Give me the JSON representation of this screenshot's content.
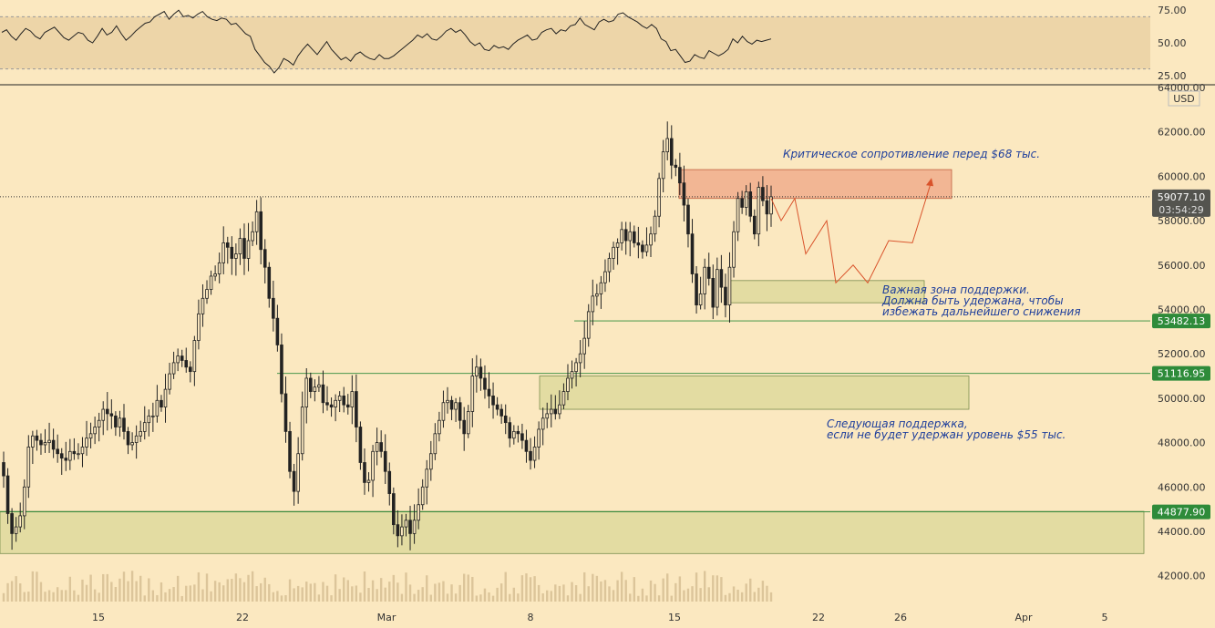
{
  "chart_data": [
    {
      "type": "line",
      "panel": "RSI",
      "ylim": [
        20,
        80
      ],
      "band": [
        30,
        70
      ],
      "midline": 50,
      "yticks": [
        "75.00",
        "50.00",
        "25.00"
      ],
      "values": [
        58,
        60,
        55,
        52,
        57,
        61,
        59,
        55,
        53,
        58,
        60,
        62,
        58,
        54,
        52,
        55,
        58,
        57,
        52,
        50,
        55,
        61,
        56,
        58,
        63,
        57,
        52,
        55,
        59,
        62,
        65,
        66,
        70,
        72,
        74,
        68,
        72,
        75,
        70,
        71,
        69,
        72,
        74,
        70,
        68,
        67,
        69,
        68,
        64,
        65,
        61,
        57,
        55,
        45,
        40,
        35,
        32,
        27,
        31,
        38,
        36,
        33,
        40,
        45,
        49,
        45,
        41,
        46,
        51,
        45,
        41,
        37,
        39,
        36,
        41,
        43,
        40,
        38,
        37,
        41,
        38,
        38,
        40,
        43,
        46,
        49,
        52,
        56,
        54,
        57,
        53,
        52,
        55,
        59,
        61,
        58,
        60,
        56,
        51,
        48,
        50,
        45,
        44,
        48,
        46,
        47,
        45,
        49,
        52,
        54,
        56,
        52,
        53,
        58,
        60,
        61,
        57,
        60,
        59,
        63,
        64,
        69,
        64,
        62,
        60,
        66,
        68,
        66,
        67,
        72,
        73,
        70,
        68,
        66,
        63,
        61,
        64,
        61,
        53,
        51,
        44,
        45,
        40,
        35,
        36,
        41,
        39,
        38,
        44,
        42,
        40,
        42,
        45,
        53,
        50,
        55,
        51,
        49,
        52,
        51,
        52,
        53
      ]
    },
    {
      "type": "candlestick",
      "panel": "price",
      "currency": "USD",
      "ylim": [
        41000,
        64000
      ],
      "yticks": [
        "64000.00",
        "62000.00",
        "60000.00",
        "58000.00",
        "56000.00",
        "54000.00",
        "52000.00",
        "50000.00",
        "48000.00",
        "46000.00",
        "44000.00",
        "42000.00"
      ],
      "xticks": [
        "15",
        "22",
        "Mar",
        "8",
        "15",
        "22",
        "26",
        "Apr",
        "5"
      ],
      "close_series": [
        46500,
        44800,
        43900,
        44200,
        44700,
        46000,
        47800,
        48300,
        48100,
        47900,
        48000,
        48100,
        47700,
        47500,
        47300,
        47200,
        47600,
        47500,
        47500,
        47800,
        48200,
        48400,
        48700,
        49000,
        49500,
        49300,
        49200,
        48700,
        49100,
        48500,
        47900,
        48000,
        48300,
        48500,
        48900,
        49200,
        49200,
        49900,
        49600,
        50400,
        51100,
        51600,
        51900,
        51700,
        51400,
        51200,
        52600,
        53800,
        54500,
        54900,
        55500,
        55600,
        56100,
        57000,
        56800,
        56300,
        56500,
        57200,
        56300,
        57100,
        57500,
        58400,
        56700,
        55900,
        54500,
        53600,
        52400,
        50200,
        48500,
        46700,
        45800,
        47500,
        49600,
        50900,
        50300,
        50500,
        50600,
        49800,
        49700,
        49600,
        49900,
        50100,
        49700,
        49600,
        50300,
        48700,
        47100,
        46200,
        46300,
        47600,
        48000,
        47600,
        46700,
        45700,
        44300,
        43800,
        44200,
        44500,
        43900,
        44500,
        45200,
        46000,
        46800,
        47500,
        48400,
        49000,
        49800,
        49900,
        49500,
        49800,
        49000,
        48400,
        49400,
        51000,
        51400,
        50900,
        50400,
        50100,
        49700,
        49500,
        49200,
        48900,
        48200,
        48500,
        48400,
        48100,
        47600,
        47200,
        47800,
        48600,
        49100,
        49300,
        49500,
        49300,
        49700,
        50300,
        50900,
        51200,
        51600,
        52000,
        52700,
        53900,
        54600,
        54700,
        55200,
        55700,
        56300,
        56800,
        57000,
        57600,
        57100,
        57500,
        57000,
        56900,
        56600,
        56900,
        57400,
        58200,
        59900,
        61100,
        61700,
        60500,
        60400,
        59700,
        58700,
        57400,
        55600,
        54200,
        54700,
        55900,
        55400,
        54100,
        55800,
        55000,
        54200,
        55900,
        57500,
        59000,
        58600,
        59300,
        58200,
        57400,
        59500,
        58900,
        58300,
        59077
      ]
    }
  ],
  "price": {
    "current_price": "59077.10",
    "countdown": "03:54:29",
    "levels": [
      {
        "label": "53482.13",
        "value": 53482.13,
        "color": "#2e8b3a"
      },
      {
        "label": "51116.95",
        "value": 51116.95,
        "color": "#2e8b3a"
      },
      {
        "label": "44877.90",
        "value": 44877.9,
        "color": "#2e8b3a"
      }
    ],
    "zones": [
      {
        "name": "resistance-zone",
        "from": 59000,
        "to": 60300,
        "color": "#f2b694"
      },
      {
        "name": "support-zone-1",
        "from": 54300,
        "to": 55300,
        "color": "#e3dca2"
      },
      {
        "name": "support-zone-2",
        "from": 49500,
        "to": 51000,
        "color": "#e3dca2"
      },
      {
        "name": "support-zone-3",
        "from": 43000,
        "to": 44900,
        "color": "#e3dca2"
      }
    ],
    "projection": [
      59000,
      58000,
      59000,
      56500,
      58000,
      55200,
      56000,
      55200,
      57100,
      57000,
      59800
    ]
  },
  "annotations": {
    "resistance": "Критическое сопротивление перед $68 тыс.",
    "support1_line1": "Важная зона поддержки.",
    "support1_line2": "Должна быть удержана, чтобы",
    "support1_line3": "избежать дальнейшего снижения",
    "support2_line1": "Следующая поддержка,",
    "support2_line2": "если не будет удержан уровень $55 тыс."
  },
  "colors": {
    "background": "#fbe8c0",
    "rsi_band": "#edd5a8",
    "candle": "#222222",
    "volume": "#dcc59a",
    "projection": "#d9532b",
    "tag_green": "#2e8b3a",
    "tag_dark": "#2b2b2b"
  }
}
